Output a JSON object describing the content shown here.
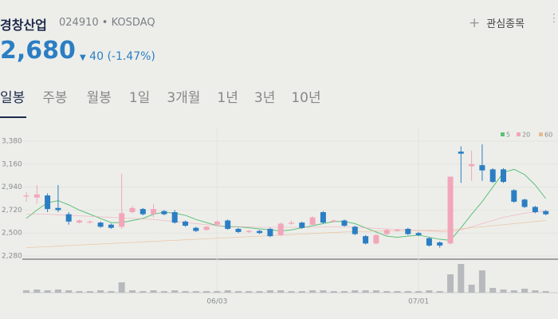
{
  "header": {
    "name": "경창산업",
    "code": "024910",
    "market": "KOSDAQ",
    "watch_button": "관심종목",
    "price": "2,680",
    "change": "40",
    "change_pct": "(-1.47%)"
  },
  "tabs": [
    "일봉",
    "주봉",
    "월봉",
    "1일",
    "3개월",
    "1년",
    "3년",
    "10년"
  ],
  "chart_data": {
    "type": "candlestick",
    "categories": [
      null,
      null,
      null,
      null,
      null,
      null,
      null,
      null,
      null,
      null,
      null,
      null,
      null,
      null,
      null,
      null,
      null,
      null,
      "06/03",
      null,
      null,
      null,
      null,
      null,
      null,
      null,
      null,
      null,
      null,
      null,
      null,
      null,
      null,
      null,
      null,
      null,
      null,
      "07/01",
      null,
      null,
      null,
      null,
      null,
      null,
      null,
      null,
      null,
      null,
      null,
      null
    ],
    "open": [
      2850,
      2840,
      2860,
      2740,
      2680,
      2600,
      2600,
      2600,
      2580,
      2560,
      2700,
      2730,
      2680,
      2710,
      2700,
      2610,
      2550,
      2530,
      2580,
      2620,
      2540,
      2510,
      2520,
      2540,
      2480,
      2590,
      2600,
      2580,
      2700,
      2610,
      2620,
      2560,
      2470,
      2400,
      2490,
      2520,
      2540,
      2500,
      2450,
      2410,
      2400,
      3280,
      3140,
      3150,
      3110,
      3110,
      2910,
      2820,
      2750,
      2710
    ],
    "high": [
      2890,
      2960,
      2880,
      2960,
      2700,
      2630,
      2620,
      2610,
      2590,
      3070,
      2760,
      2740,
      2780,
      2720,
      2720,
      2620,
      2560,
      2570,
      2620,
      2630,
      2550,
      2530,
      2530,
      2550,
      2600,
      2620,
      2610,
      2660,
      2710,
      2630,
      2630,
      2570,
      2480,
      2490,
      2540,
      2540,
      2550,
      2510,
      2460,
      2420,
      3040,
      3330,
      3290,
      3350,
      3120,
      3120,
      2920,
      2830,
      2760,
      2720
    ],
    "low": [
      2800,
      2780,
      2700,
      2700,
      2580,
      2590,
      2590,
      2550,
      2540,
      2540,
      2690,
      2670,
      2650,
      2670,
      2590,
      2560,
      2510,
      2520,
      2570,
      2530,
      2500,
      2500,
      2490,
      2460,
      2470,
      2580,
      2540,
      2570,
      2590,
      2600,
      2560,
      2480,
      2390,
      2390,
      2480,
      2510,
      2480,
      2470,
      2370,
      2360,
      2390,
      2980,
      3000,
      3000,
      2980,
      2980,
      2790,
      2740,
      2690,
      2670
    ],
    "close": [
      2860,
      2870,
      2730,
      2720,
      2610,
      2620,
      2610,
      2560,
      2550,
      2690,
      2740,
      2680,
      2730,
      2680,
      2600,
      2570,
      2520,
      2560,
      2610,
      2540,
      2510,
      2520,
      2500,
      2470,
      2590,
      2600,
      2550,
      2650,
      2600,
      2620,
      2570,
      2490,
      2400,
      2480,
      2530,
      2530,
      2490,
      2480,
      2380,
      2380,
      3040,
      3260,
      3160,
      3100,
      2990,
      2990,
      2800,
      2750,
      2700,
      2680
    ],
    "up_color": "#f2a6b9",
    "down_color": "#2b7ec3",
    "series": [
      {
        "name": "5",
        "color": "#5cc07a",
        "values": [
          2640,
          2720,
          2790,
          2810,
          2770,
          2720,
          2680,
          2640,
          2600,
          2600,
          2620,
          2640,
          2680,
          2700,
          2690,
          2670,
          2630,
          2600,
          2570,
          2560,
          2560,
          2550,
          2540,
          2530,
          2520,
          2530,
          2550,
          2570,
          2590,
          2610,
          2610,
          2590,
          2550,
          2510,
          2470,
          2460,
          2470,
          2480,
          2460,
          2440,
          2430,
          2550,
          2680,
          2800,
          2940,
          3080,
          3110,
          3060,
          2960,
          2830
        ]
      },
      {
        "name": "20",
        "color": "#f2a6b9",
        "values": [
          2680,
          2680,
          2680,
          2675,
          2670,
          2665,
          2660,
          2655,
          2650,
          2645,
          2640,
          2635,
          2630,
          2620,
          2610,
          2600,
          2590,
          2580,
          2570,
          2565,
          2560,
          2560,
          2555,
          2555,
          2555,
          2555,
          2555,
          2555,
          2560,
          2560,
          2560,
          2555,
          2550,
          2545,
          2540,
          2535,
          2530,
          2525,
          2520,
          2515,
          2510,
          2530,
          2560,
          2590,
          2620,
          2650,
          2670,
          2690,
          2700,
          2710
        ]
      },
      {
        "name": "60",
        "color": "#e9b98f",
        "values": [
          2360,
          2365,
          2370,
          2375,
          2380,
          2385,
          2390,
          2395,
          2400,
          2405,
          2410,
          2415,
          2420,
          2425,
          2430,
          2435,
          2440,
          2445,
          2450,
          2455,
          2460,
          2465,
          2470,
          2475,
          2480,
          2485,
          2490,
          2495,
          2500,
          2505,
          2510,
          2515,
          2515,
          2520,
          2520,
          2520,
          2525,
          2525,
          2525,
          2525,
          2530,
          2540,
          2550,
          2560,
          2570,
          2580,
          2590,
          2600,
          2610,
          2620
        ]
      }
    ],
    "volume": [
      3,
      4,
      3,
      4,
      3,
      2,
      2,
      3,
      2,
      13,
      3,
      2,
      3,
      2,
      3,
      2,
      2,
      2,
      2,
      3,
      2,
      2,
      2,
      3,
      3,
      2,
      2,
      3,
      3,
      2,
      2,
      3,
      3,
      3,
      2,
      2,
      2,
      2,
      3,
      2,
      23,
      36,
      10,
      28,
      6,
      4,
      3,
      5,
      3,
      2
    ],
    "volume_color": "#b7b9bc",
    "ylim": [
      2280,
      3380
    ],
    "yticks": [
      {
        "value": 3380,
        "label": "3,380"
      },
      {
        "value": 3160,
        "label": "3,160"
      },
      {
        "value": 2940,
        "label": "2,940"
      },
      {
        "value": 2720,
        "label": "2,720"
      },
      {
        "value": 2500,
        "label": "2,500"
      },
      {
        "value": 2280,
        "label": "2,280"
      }
    ]
  }
}
